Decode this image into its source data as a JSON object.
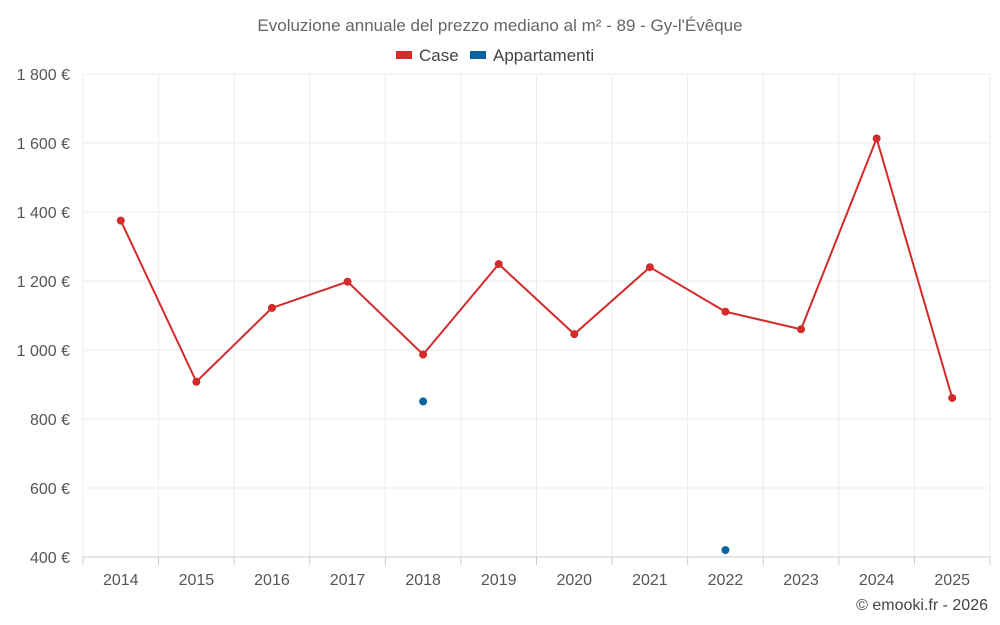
{
  "chart_data": {
    "type": "line",
    "title": "Evoluzione annuale del prezzo mediano al m² - 89 - Gy-l'Évêque",
    "categories": [
      "2014",
      "2015",
      "2016",
      "2017",
      "2018",
      "2019",
      "2020",
      "2021",
      "2022",
      "2023",
      "2024",
      "2025"
    ],
    "series": [
      {
        "name": "Case",
        "color": "#d32a2a",
        "values": [
          1375,
          908,
          1122,
          1198,
          987,
          1249,
          1046,
          1240,
          1111,
          1060,
          1613,
          861
        ]
      },
      {
        "name": "Appartamenti",
        "color": "#0b64a0",
        "values": [
          null,
          null,
          null,
          null,
          851,
          null,
          null,
          null,
          420,
          null,
          null,
          null
        ]
      }
    ],
    "ylim": [
      400,
      1800
    ],
    "yticks": [
      400,
      600,
      800,
      1000,
      1200,
      1400,
      1600,
      1800
    ],
    "ytick_labels": [
      "400 €",
      "600 €",
      "800 €",
      "1 000 €",
      "1 200 €",
      "1 400 €",
      "1 600 €",
      "1 800 €"
    ],
    "legend_position": "top-center",
    "grid": true
  },
  "credit": "© emooki.fr - 2026"
}
